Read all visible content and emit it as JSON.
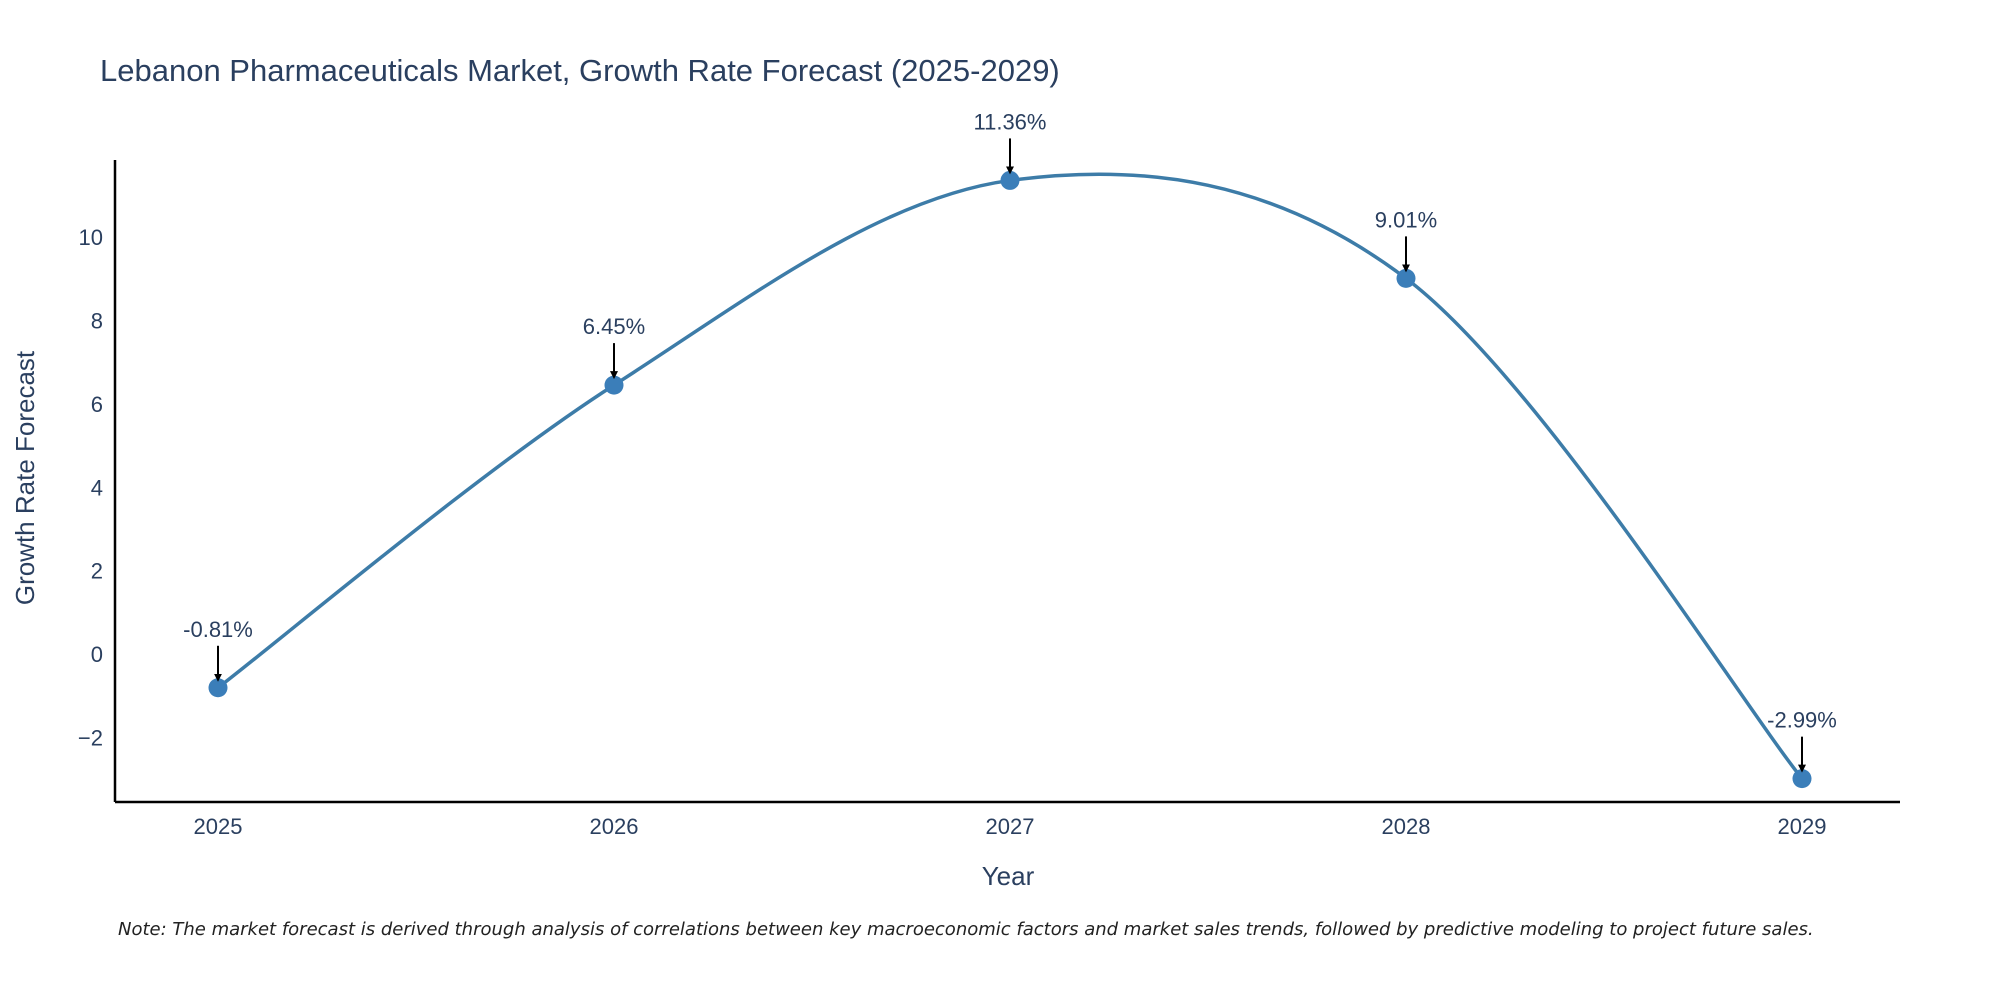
{
  "colors": {
    "line": "#3d7ca8",
    "marker": "#3b7eb9",
    "axis": "#000000",
    "text": "#2a3f5f"
  },
  "chart_data": {
    "type": "line",
    "title": "Lebanon Pharmaceuticals Market, Growth Rate Forecast (2025-2029)",
    "xlabel": "Year",
    "ylabel": "Growth Rate Forecast",
    "categories": [
      "2025",
      "2026",
      "2027",
      "2028",
      "2029"
    ],
    "values": [
      -0.81,
      6.45,
      11.36,
      9.01,
      -2.99
    ],
    "data_labels": [
      "-0.81%",
      "6.45%",
      "11.36%",
      "9.01%",
      "-2.99%"
    ],
    "yticks": [
      -2,
      0,
      2,
      4,
      6,
      8,
      10
    ],
    "ytick_labels": [
      "−2",
      "0",
      "2",
      "4",
      "6",
      "8",
      "10"
    ],
    "ylim": [
      -3.55,
      11.85
    ],
    "line_shape": "spline",
    "grid": false,
    "legend": "none"
  },
  "note": "Note: The market forecast is derived through analysis of correlations between key macroeconomic factors and market sales trends, followed by predictive modeling to project future sales."
}
